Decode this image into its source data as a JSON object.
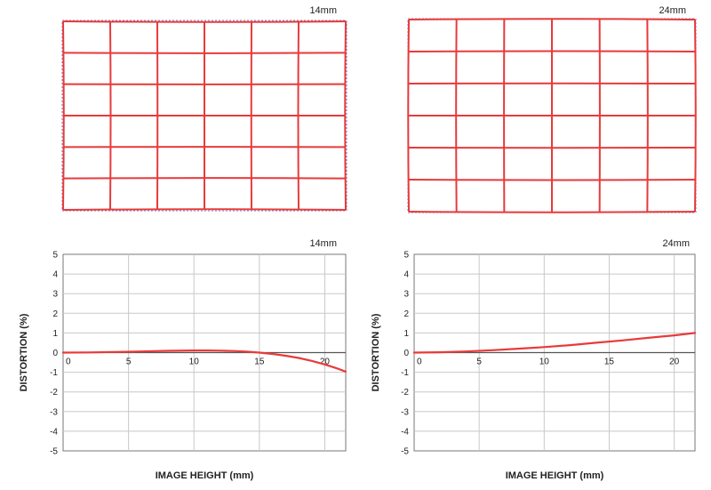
{
  "grids": [
    {
      "label": "14mm",
      "distortion_type": "slight pincushion edge"
    },
    {
      "label": "24mm",
      "distortion_type": "slight barrel"
    }
  ],
  "colors": {
    "curve": "#e83a3a",
    "ideal_grid": "#7b7fc4",
    "gridline": "#c8c8c8",
    "axis": "#555555"
  },
  "chart_data": [
    {
      "type": "line",
      "title": "14mm",
      "xlabel": "IMAGE HEIGHT (mm)",
      "ylabel": "DISTORTION (%)",
      "xlim": [
        0,
        21.6
      ],
      "ylim": [
        -5,
        5
      ],
      "xticks": [
        0,
        5,
        10,
        15,
        20
      ],
      "yticks": [
        5,
        4,
        3,
        2,
        1,
        0,
        -1,
        -2,
        -3,
        -4,
        -5
      ],
      "grid": true,
      "series": [
        {
          "x": [
            0,
            2,
            4,
            6,
            8,
            10,
            11,
            12,
            13,
            14,
            15,
            16,
            17,
            18,
            19,
            20,
            21,
            21.6
          ],
          "y": [
            0,
            0.01,
            0.03,
            0.06,
            0.09,
            0.11,
            0.11,
            0.1,
            0.08,
            0.05,
            0.0,
            -0.07,
            -0.16,
            -0.27,
            -0.42,
            -0.6,
            -0.82,
            -0.97
          ]
        }
      ]
    },
    {
      "type": "line",
      "title": "24mm",
      "xlabel": "IMAGE HEIGHT (mm)",
      "ylabel": "DISTORTION (%)",
      "xlim": [
        0,
        21.6
      ],
      "ylim": [
        -5,
        5
      ],
      "xticks": [
        0,
        5,
        10,
        15,
        20
      ],
      "yticks": [
        5,
        4,
        3,
        2,
        1,
        0,
        -1,
        -2,
        -3,
        -4,
        -5
      ],
      "grid": true,
      "series": [
        {
          "x": [
            0,
            2,
            4,
            6,
            8,
            10,
            12,
            14,
            16,
            18,
            20,
            21.6
          ],
          "y": [
            0,
            0.02,
            0.06,
            0.12,
            0.2,
            0.28,
            0.38,
            0.5,
            0.62,
            0.75,
            0.88,
            1.0
          ]
        }
      ]
    }
  ]
}
